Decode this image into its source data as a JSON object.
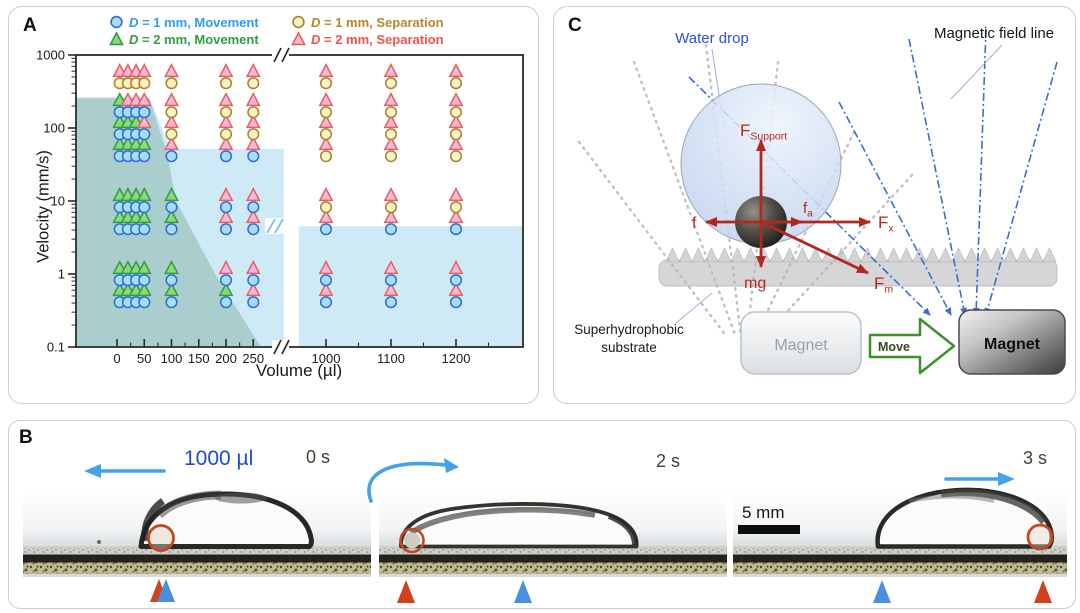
{
  "panel_a": {
    "label": "A"
  },
  "chart_data": {
    "type": "scatter",
    "xlabel": "Volume (µl)",
    "ylabel": "Velocity (mm/s)",
    "x_axis": {
      "scale": "linear-broken",
      "ticks_left": [
        0,
        50,
        100,
        150,
        200,
        250
      ],
      "ticks_right": [
        1000,
        1100,
        1200
      ],
      "break_after": 250
    },
    "y_axis": {
      "scale": "log",
      "ticks": [
        0.1,
        1,
        10,
        100,
        1000
      ],
      "range": [
        0.1,
        1000
      ]
    },
    "legend": [
      {
        "prefix": "D",
        "text": " = 1 mm, Movement",
        "marker": "circle",
        "state": "M",
        "fill": "#a8dcf8",
        "stroke": "#2b6fd6",
        "label_color": "#2e9bf0"
      },
      {
        "prefix": "D",
        "text": " = 1 mm, Separation",
        "marker": "circle",
        "state": "S",
        "fill": "#f8f2c2",
        "stroke": "#a8832e",
        "label_color": "#b3892b"
      },
      {
        "prefix": "D",
        "text": " = 2 mm, Movement",
        "marker": "triangle",
        "state": "M",
        "fill": "#8ed879",
        "stroke": "#2f9e44",
        "label_color": "#2f9e44"
      },
      {
        "prefix": "D",
        "text": " = 2 mm, Separation",
        "marker": "triangle",
        "state": "S",
        "fill": "#f7b9da",
        "stroke": "#e85f5f",
        "label_color": "#f05252"
      }
    ],
    "volumes": [
      5,
      20,
      35,
      50,
      100,
      200,
      250,
      1000,
      1100,
      1200
    ],
    "velocities": [
      0.5,
      1,
      5,
      10,
      50,
      100,
      200,
      500
    ],
    "marker_colors": {
      "circle": {
        "M": {
          "fill": "#a8dcf8",
          "stroke": "#2b6fd6"
        },
        "S": {
          "fill": "#f8f2c2",
          "stroke": "#a8832e"
        }
      },
      "triangle": {
        "M": {
          "fill": "#8ed879",
          "stroke": "#2f9e44"
        },
        "S": {
          "fill": "#f7b9da",
          "stroke": "#e85f5f"
        }
      }
    },
    "series": [
      {
        "name": "D = 1 mm",
        "marker": "circle",
        "states_by_velocity": {
          "0.5": [
            "M",
            "M",
            "M",
            "M",
            "M",
            "M",
            "M",
            "M",
            "M",
            "M"
          ],
          "1": [
            "M",
            "M",
            "M",
            "M",
            "M",
            "M",
            "M",
            "M",
            "M",
            "M"
          ],
          "5": [
            "M",
            "M",
            "M",
            "M",
            "M",
            "M",
            "M",
            "M",
            "M",
            "M"
          ],
          "10": [
            "M",
            "M",
            "M",
            "M",
            "M",
            "M",
            "M",
            "S",
            "S",
            "S"
          ],
          "50": [
            "M",
            "M",
            "M",
            "M",
            "M",
            "M",
            "M",
            "S",
            "S",
            "S"
          ],
          "100": [
            "M",
            "M",
            "M",
            "M",
            "S",
            "S",
            "S",
            "S",
            "S",
            "S"
          ],
          "200": [
            "M",
            "M",
            "M",
            "M",
            "S",
            "S",
            "S",
            "S",
            "S",
            "S"
          ],
          "500": [
            "S",
            "S",
            "S",
            "S",
            "S",
            "S",
            "S",
            "S",
            "S",
            "S"
          ]
        }
      },
      {
        "name": "D = 2 mm",
        "marker": "triangle",
        "states_by_velocity": {
          "0.5": [
            "M",
            "M",
            "M",
            "M",
            "M",
            "M",
            "S",
            "S",
            "S",
            "S"
          ],
          "1": [
            "M",
            "M",
            "M",
            "M",
            "M",
            "S",
            "S",
            "S",
            "S",
            "S"
          ],
          "5": [
            "M",
            "M",
            "M",
            "M",
            "M",
            "S",
            "S",
            "S",
            "S",
            "S"
          ],
          "10": [
            "M",
            "M",
            "M",
            "M",
            "M",
            "S",
            "S",
            "S",
            "S",
            "S"
          ],
          "50": [
            "M",
            "M",
            "M",
            "M",
            "S",
            "S",
            "S",
            "S",
            "S",
            "S"
          ],
          "100": [
            "M",
            "M",
            "M",
            "S",
            "S",
            "S",
            "S",
            "S",
            "S",
            "S"
          ],
          "200": [
            "M",
            "S",
            "S",
            "S",
            "S",
            "S",
            "S",
            "S",
            "S",
            "S"
          ],
          "500": [
            "S",
            "S",
            "S",
            "S",
            "S",
            "S",
            "S",
            "S",
            "S",
            "S"
          ]
        }
      }
    ],
    "regions": [
      {
        "name": "movement-region-1mm-left",
        "fill": "rgba(168,216,240,0.55)",
        "points": [
          [
            -75,
            260
          ],
          [
            59,
            260
          ],
          [
            75,
            140
          ],
          [
            90,
            70
          ],
          [
            105,
            52
          ],
          [
            306,
            52
          ],
          [
            306,
            0.1
          ],
          [
            -75,
            0.1
          ]
        ]
      },
      {
        "name": "movement-region-1mm-right",
        "fill": "rgba(168,216,240,0.55)",
        "points": [
          [
            958,
            4.5
          ],
          [
            1303,
            4.5
          ],
          [
            1303,
            0.1
          ],
          [
            958,
            0.1
          ]
        ]
      },
      {
        "name": "movement-region-2mm",
        "fill": "rgba(110,160,140,0.38)",
        "points": [
          [
            -75,
            260
          ],
          [
            59,
            260
          ],
          [
            92,
            45
          ],
          [
            108,
            10
          ],
          [
            180,
            1
          ],
          [
            264,
            0.1
          ],
          [
            -75,
            0.1
          ]
        ]
      }
    ]
  },
  "panel_c": {
    "label": "C",
    "water_drop": "Water drop",
    "magnetic_field_line": "Magnetic field line",
    "substrate_line1": "Superhydrophobic",
    "substrate_line2": "substrate",
    "magnet_left": "Magnet",
    "magnet_right": "Magnet",
    "move": "Move",
    "forces": {
      "support_main": "F",
      "support_sub": "Support",
      "friction": "f",
      "fa_main": "f",
      "fa_sub": "a",
      "fx_main": "F",
      "fx_sub": "x",
      "gravity": "mg",
      "fm_main": "F",
      "fm_sub": "m"
    },
    "colors": {
      "force_arrow": "#b2281e",
      "field_line": "#3a6ed0",
      "move_arrow": "#3f8f2f",
      "drop_label": "#2b52c8"
    }
  },
  "panel_b": {
    "label": "B",
    "volume": "1000 µl",
    "time_0": "0 s",
    "time_1": "2 s",
    "time_2": "3 s",
    "scale": "5 mm",
    "marker_colors": {
      "red_triangle": "#d2401c",
      "blue_triangle": "#4a90e0",
      "bead_ring": "#c2491d"
    }
  }
}
